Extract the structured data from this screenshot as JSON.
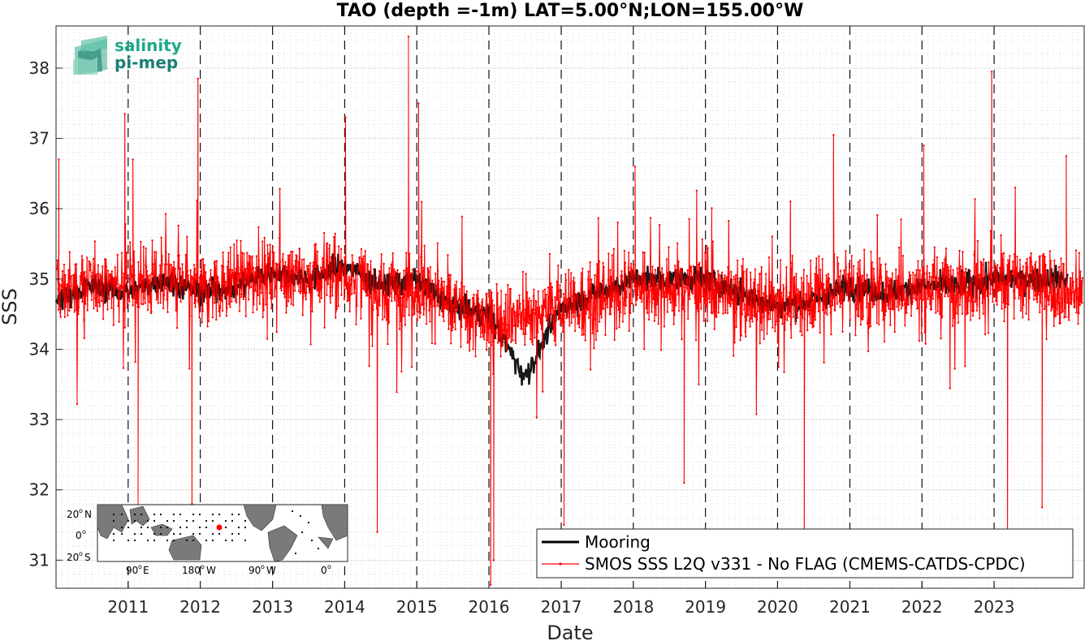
{
  "chart_data": {
    "type": "line",
    "title": "TAO (depth =-1m) LAT=5.00°N;LON=155.00°W",
    "xlabel": "Date",
    "ylabel": "SSS",
    "xlim": [
      "2010-01-01",
      "2024-04-01"
    ],
    "ylim": [
      30.6,
      38.6
    ],
    "x_ticks": [
      "2011",
      "2012",
      "2013",
      "2014",
      "2015",
      "2016",
      "2017",
      "2018",
      "2019",
      "2020",
      "2021",
      "2022",
      "2023"
    ],
    "y_ticks": [
      "31",
      "32",
      "33",
      "34",
      "35",
      "36",
      "37",
      "38"
    ],
    "grid": "dotted, on",
    "year_boundaries_dashed": true,
    "legend_position": "bottom-right",
    "series": [
      {
        "name": "Mooring",
        "color": "#000000",
        "x": [
          "2010-01-01",
          "2010-07-01",
          "2011-01-01",
          "2011-07-01",
          "2012-01-01",
          "2012-07-01",
          "2013-01-01",
          "2013-07-01",
          "2014-01-01",
          "2014-07-01",
          "2015-01-01",
          "2015-07-01",
          "2016-01-01",
          "2016-07-01",
          "2017-01-01",
          "2017-07-01",
          "2018-01-01",
          "2018-07-01",
          "2019-01-01",
          "2019-07-01",
          "2020-01-01",
          "2020-07-01",
          "2021-01-01",
          "2021-07-01",
          "2022-01-01",
          "2022-07-01",
          "2023-01-01",
          "2023-07-01",
          "2024-01-01"
        ],
        "values": [
          34.7,
          34.9,
          34.8,
          35.0,
          34.8,
          34.9,
          35.1,
          35.0,
          35.2,
          34.9,
          35.0,
          34.6,
          34.5,
          33.6,
          34.6,
          34.8,
          35.0,
          35.0,
          35.0,
          34.8,
          34.6,
          34.7,
          34.9,
          34.8,
          34.9,
          34.9,
          35.0,
          35.0,
          35.0
        ]
      },
      {
        "name": "SMOS SSS L2Q v331 - No FLAG  (CMEMS-CATDS-CPDC)",
        "color": "#ff0000",
        "x": [
          "2010-01-01",
          "2010-07-01",
          "2011-01-01",
          "2011-07-01",
          "2012-01-01",
          "2012-07-01",
          "2013-01-01",
          "2013-07-01",
          "2014-01-01",
          "2014-07-01",
          "2015-01-01",
          "2015-07-01",
          "2016-01-01",
          "2016-07-01",
          "2017-01-01",
          "2017-07-01",
          "2018-01-01",
          "2018-07-01",
          "2019-01-01",
          "2019-07-01",
          "2020-01-01",
          "2020-07-01",
          "2021-01-01",
          "2021-07-01",
          "2022-01-01",
          "2022-07-01",
          "2023-01-01",
          "2023-07-01",
          "2024-01-01"
        ],
        "values": [
          34.8,
          34.9,
          34.9,
          35.0,
          34.8,
          35.0,
          35.1,
          35.0,
          35.1,
          34.8,
          34.9,
          34.6,
          34.4,
          34.5,
          34.6,
          34.7,
          34.9,
          34.9,
          34.9,
          34.7,
          34.6,
          34.8,
          34.9,
          34.8,
          34.9,
          34.9,
          34.9,
          35.0,
          34.8
        ],
        "spread_sd": 0.65,
        "notable_points": [
          {
            "x": "2010-01-15",
            "y": 36.7
          },
          {
            "x": "2010-12-15",
            "y": 37.35
          },
          {
            "x": "2011-01-25",
            "y": 36.7
          },
          {
            "x": "2011-02-20",
            "y": 31.6
          },
          {
            "x": "2011-12-20",
            "y": 37.85
          },
          {
            "x": "2011-11-20",
            "y": 31.8
          },
          {
            "x": "2014-01-05",
            "y": 37.3
          },
          {
            "x": "2014-06-15",
            "y": 31.4
          },
          {
            "x": "2014-11-20",
            "y": 38.45
          },
          {
            "x": "2015-01-10",
            "y": 37.5
          },
          {
            "x": "2016-01-10",
            "y": 30.65
          },
          {
            "x": "2016-01-25",
            "y": 31.0
          },
          {
            "x": "2017-01-15",
            "y": 31.5
          },
          {
            "x": "2018-01-10",
            "y": 36.6
          },
          {
            "x": "2018-09-15",
            "y": 32.1
          },
          {
            "x": "2020-05-15",
            "y": 31.4
          },
          {
            "x": "2020-10-10",
            "y": 37.05
          },
          {
            "x": "2022-01-10",
            "y": 36.9
          },
          {
            "x": "2022-12-20",
            "y": 37.95
          },
          {
            "x": "2023-03-10",
            "y": 31.2
          },
          {
            "x": "2023-09-01",
            "y": 31.75
          },
          {
            "x": "2024-01-01",
            "y": 36.75
          }
        ]
      }
    ]
  },
  "logo": {
    "line1": "salinity",
    "line2": "pi-mep",
    "color": "#1fa889"
  },
  "inset_map": {
    "lat_ticks": [
      "20",
      "0",
      "20"
    ],
    "lat_hemis": [
      "N",
      "",
      "S"
    ],
    "lon_ticks": [
      "90",
      "180",
      "90",
      "0"
    ],
    "lon_hemis": [
      "E",
      "W",
      "W",
      ""
    ],
    "marker_color": "#ff0000"
  }
}
